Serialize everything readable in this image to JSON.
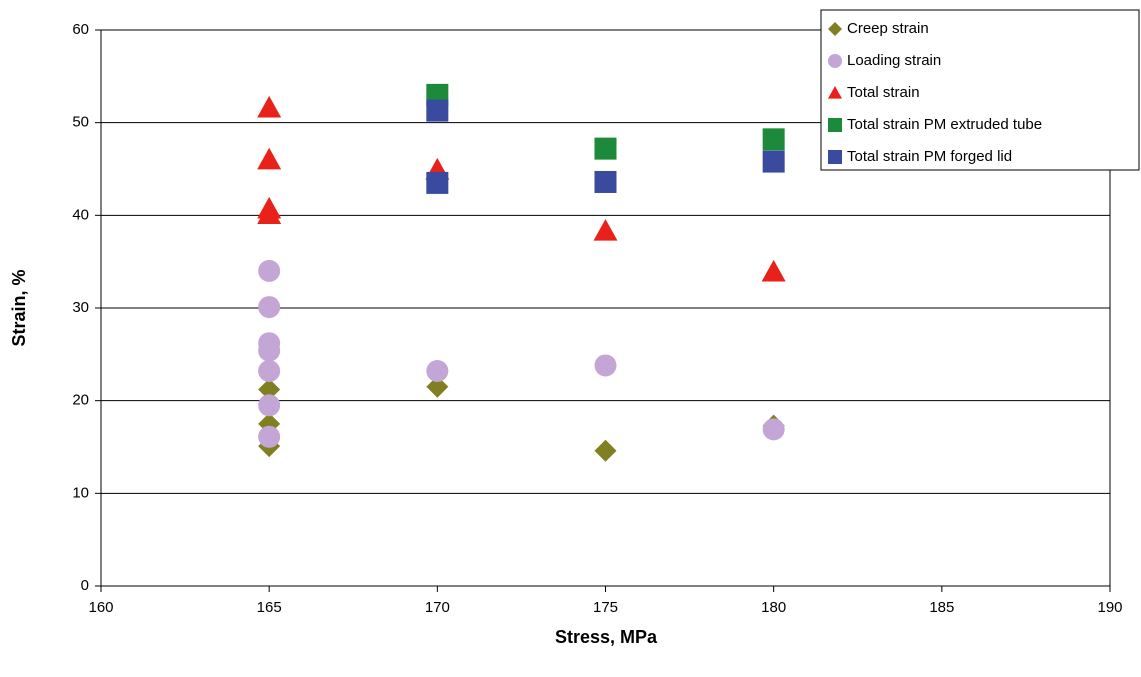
{
  "chart_data": {
    "type": "scatter",
    "x_label": "Stress, MPa",
    "y_label": "Strain, %",
    "xlim": [
      160,
      190
    ],
    "xticks": [
      160,
      165,
      170,
      175,
      180,
      185,
      190
    ],
    "ylim": [
      0,
      60
    ],
    "yticks": [
      0,
      10,
      20,
      30,
      40,
      50,
      60
    ],
    "grid": true,
    "legend_position": "top-right",
    "series": [
      {
        "name": "Creep strain",
        "color": "#808022",
        "marker": "diamond",
        "x": [
          165,
          165,
          165,
          170,
          175,
          180
        ],
        "values": [
          15.1,
          17.5,
          21.2,
          21.5,
          14.6,
          17.3
        ]
      },
      {
        "name": "Loading strain",
        "color": "#c3a6d6",
        "marker": "circle",
        "x": [
          165,
          165,
          165,
          165,
          165,
          165,
          165,
          170,
          175,
          180
        ],
        "values": [
          34.0,
          30.1,
          26.2,
          25.4,
          23.2,
          19.5,
          16.1,
          23.2,
          23.8,
          16.9
        ]
      },
      {
        "name": "Total strain",
        "color": "#e8221b",
        "marker": "triangle",
        "x": [
          165,
          165,
          165,
          165,
          170,
          175,
          180
        ],
        "values": [
          51.6,
          46.0,
          40.7,
          40.1,
          44.9,
          38.3,
          33.9
        ]
      },
      {
        "name": "Total strain PM extruded tube",
        "color": "#1c8a3a",
        "marker": "square",
        "x": [
          170,
          175,
          180
        ],
        "values": [
          53.0,
          47.2,
          48.2
        ]
      },
      {
        "name": "Total strain PM forged lid",
        "color": "#3a4a9f",
        "marker": "square",
        "x": [
          170,
          170,
          175,
          180
        ],
        "values": [
          51.3,
          43.5,
          43.6,
          45.8
        ]
      }
    ]
  }
}
